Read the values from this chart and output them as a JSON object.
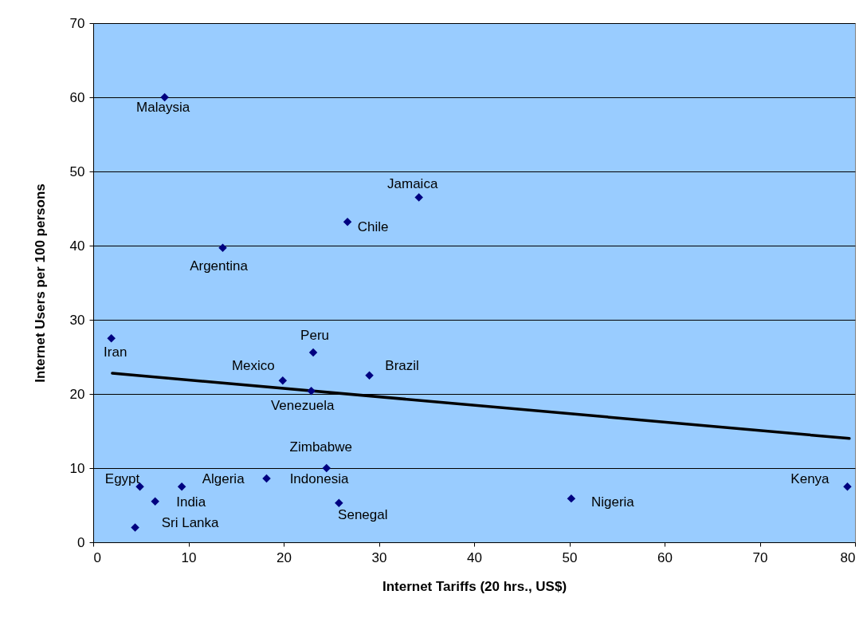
{
  "chart_data": {
    "type": "scatter",
    "xlabel": "Internet Tariffs (20 hrs., US$)",
    "ylabel": "Internet Users per 100 persons",
    "xlim": [
      0,
      80
    ],
    "ylim": [
      0,
      70
    ],
    "xticks": [
      0,
      10,
      20,
      30,
      40,
      50,
      60,
      70,
      80
    ],
    "yticks": [
      0,
      10,
      20,
      30,
      40,
      50,
      60,
      70
    ],
    "grid": "y",
    "series": [
      {
        "marker": "diamond",
        "color": "#000080",
        "x": [
          7.5,
          34.2,
          26.7,
          13.6,
          1.9,
          23.1,
          29.0,
          19.9,
          22.9,
          24.5,
          18.2,
          9.3,
          4.9,
          6.5,
          25.8,
          50.2,
          79.2,
          4.4
        ],
        "values": [
          60.0,
          46.5,
          43.2,
          39.7,
          27.5,
          25.6,
          22.5,
          21.8,
          20.4,
          10.0,
          8.6,
          7.5,
          7.5,
          5.5,
          5.3,
          5.9,
          7.5,
          2.0
        ],
        "value_labels": [
          "Malaysia",
          "Jamaica",
          "Chile",
          "Argentina",
          "Iran",
          "Peru",
          "Brazil",
          "Mexico",
          "Venezuela",
          "Zimbabwe",
          "Indonesia",
          "Algeria",
          "Egypt",
          "India",
          "Senegal",
          "Nigeria",
          "Kenya",
          "Sri Lanka"
        ]
      },
      {
        "type": "line",
        "marker": "none",
        "color": "#000000",
        "x": [
          2.0,
          79.4
        ],
        "values": [
          22.8,
          14.0
        ]
      }
    ]
  }
}
